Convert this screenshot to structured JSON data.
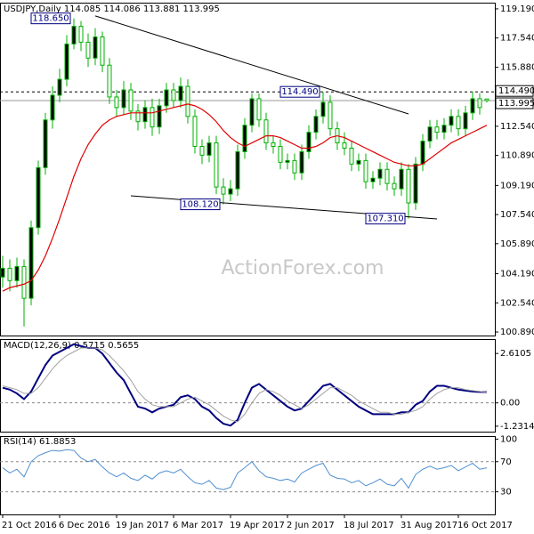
{
  "chart_data": [
    {
      "type": "candlestick",
      "title": "USDJPY,Daily  114.085 114.086 113.881 113.995",
      "watermark": "ActionForex.com",
      "categories": [
        "21 Oct 2016",
        null,
        null,
        null,
        null,
        null,
        null,
        null,
        "6 Dec 2016",
        null,
        null,
        null,
        null,
        null,
        null,
        null,
        "19 Jan 2017",
        null,
        null,
        null,
        null,
        null,
        null,
        null,
        "6 Mar 2017",
        null,
        null,
        null,
        null,
        null,
        null,
        null,
        "19 Apr 2017",
        null,
        null,
        null,
        null,
        null,
        null,
        null,
        "2 Jun 2017",
        null,
        null,
        null,
        null,
        null,
        null,
        null,
        "18 Jul 2017",
        null,
        null,
        null,
        null,
        null,
        null,
        null,
        "31 Aug 2017",
        null,
        null,
        null,
        null,
        null,
        null,
        null,
        "16 Oct 2017",
        null,
        null,
        null,
        null
      ],
      "open": [
        104.0,
        104.5,
        103.8,
        104.6,
        102.8,
        106.8,
        110.2,
        112.9,
        114.3,
        115.2,
        117.2,
        118.2,
        117.3,
        116.4,
        117.6,
        116.0,
        114.2,
        113.6,
        114.6,
        113.4,
        112.8,
        113.6,
        112.5,
        113.7,
        114.6,
        114.0,
        114.8,
        113.1,
        111.4,
        110.9,
        111.6,
        109.1,
        108.7,
        109.0,
        111.1,
        112.6,
        114.1,
        112.9,
        111.6,
        111.4,
        110.5,
        110.6,
        109.9,
        111.1,
        112.2,
        113.1,
        113.9,
        112.4,
        111.6,
        111.3,
        110.4,
        110.6,
        109.4,
        109.6,
        110.1,
        109.3,
        109.0,
        110.1,
        108.2,
        110.4,
        111.7,
        112.5,
        112.2,
        112.6,
        113.1,
        112.4,
        113.3,
        114.1,
        114.085
      ],
      "high": [
        105.2,
        105.0,
        105.1,
        105.0,
        107.2,
        110.6,
        113.3,
        114.8,
        115.8,
        117.7,
        118.65,
        118.5,
        117.8,
        118.1,
        117.9,
        116.4,
        114.6,
        115.1,
        115.0,
        113.8,
        114.0,
        114.1,
        114.1,
        115.0,
        115.0,
        115.3,
        115.2,
        113.5,
        111.8,
        112.0,
        112.0,
        109.6,
        109.5,
        111.5,
        113.0,
        114.4,
        114.4,
        113.3,
        112.0,
        111.8,
        111.0,
        111.0,
        111.5,
        112.6,
        113.5,
        114.49,
        114.3,
        112.8,
        112.2,
        111.7,
        111.0,
        111.0,
        110.0,
        110.5,
        110.5,
        109.7,
        110.5,
        110.4,
        110.8,
        112.1,
        112.9,
        112.9,
        113.0,
        113.5,
        113.5,
        113.7,
        114.5,
        114.4,
        114.086
      ],
      "low": [
        103.4,
        103.2,
        103.4,
        101.2,
        102.4,
        106.4,
        109.8,
        112.4,
        113.9,
        114.8,
        116.9,
        116.8,
        115.9,
        116.0,
        115.6,
        113.8,
        113.1,
        113.2,
        112.9,
        112.3,
        112.4,
        112.0,
        112.1,
        113.3,
        113.6,
        113.6,
        112.7,
        111.0,
        110.4,
        110.5,
        108.7,
        108.12,
        108.3,
        108.6,
        110.7,
        112.2,
        112.5,
        111.2,
        111.0,
        110.1,
        110.1,
        109.5,
        109.5,
        110.7,
        111.8,
        112.7,
        112.0,
        111.2,
        110.9,
        110.0,
        110.0,
        109.0,
        109.0,
        109.2,
        108.9,
        108.6,
        108.6,
        107.31,
        107.8,
        110.0,
        111.3,
        111.8,
        111.8,
        112.2,
        112.0,
        112.0,
        112.9,
        113.2,
        113.881
      ],
      "close": [
        104.5,
        103.8,
        104.6,
        102.8,
        106.8,
        110.2,
        112.9,
        114.3,
        115.2,
        117.2,
        118.2,
        117.3,
        116.4,
        117.6,
        116.0,
        114.2,
        113.6,
        114.6,
        113.4,
        112.8,
        113.6,
        112.5,
        113.7,
        114.6,
        114.0,
        114.8,
        113.1,
        111.4,
        110.9,
        111.6,
        109.1,
        108.7,
        109.0,
        111.1,
        112.6,
        114.1,
        112.9,
        111.6,
        111.4,
        110.5,
        110.6,
        109.9,
        111.1,
        112.2,
        113.1,
        113.9,
        112.4,
        111.6,
        111.3,
        110.4,
        110.6,
        109.4,
        109.6,
        110.1,
        109.3,
        109.0,
        110.1,
        108.2,
        110.4,
        111.7,
        112.5,
        112.2,
        112.6,
        113.1,
        112.4,
        113.3,
        114.1,
        113.6,
        113.995
      ],
      "color": "#00b000",
      "ma": {
        "color": "#e00000",
        "values": [
          103.2,
          103.4,
          103.5,
          103.6,
          103.8,
          104.4,
          105.2,
          106.2,
          107.3,
          108.5,
          109.7,
          110.7,
          111.5,
          112.1,
          112.6,
          112.9,
          113.1,
          113.2,
          113.3,
          113.3,
          113.3,
          113.3,
          113.4,
          113.5,
          113.6,
          113.7,
          113.8,
          113.7,
          113.5,
          113.2,
          112.8,
          112.3,
          111.9,
          111.6,
          111.4,
          111.6,
          111.8,
          112.0,
          112.0,
          111.9,
          111.7,
          111.5,
          111.3,
          111.3,
          111.4,
          111.6,
          111.9,
          112.0,
          111.9,
          111.7,
          111.5,
          111.3,
          111.1,
          110.9,
          110.7,
          110.5,
          110.4,
          110.3,
          110.3,
          110.4,
          110.7,
          111.0,
          111.3,
          111.6,
          111.8,
          112.0,
          112.2,
          112.4,
          112.6
        ]
      },
      "ylim": [
        100.69,
        119.54
      ],
      "yticks": [
        {
          "value": 119.19,
          "label": "119.190"
        },
        {
          "value": 117.54,
          "label": "117.540"
        },
        {
          "value": 115.88,
          "label": "115.880"
        },
        {
          "value": 112.54,
          "label": "112.540"
        },
        {
          "value": 110.89,
          "label": "110.890"
        },
        {
          "value": 109.19,
          "label": "109.190"
        },
        {
          "value": 107.54,
          "label": "107.540"
        },
        {
          "value": 105.89,
          "label": "105.890"
        },
        {
          "value": 104.19,
          "label": "104.190"
        },
        {
          "value": 102.54,
          "label": "102.540"
        },
        {
          "value": 100.89,
          "label": "100.890"
        }
      ],
      "levels": [
        {
          "value": 114.49,
          "label": "114.490",
          "style": "dashed"
        },
        {
          "value": 113.995,
          "label": "113.995",
          "style": "solid"
        }
      ],
      "annotations": [
        {
          "value": 118.65,
          "label": "118.650",
          "x": 10
        },
        {
          "value": 114.49,
          "label": "114.490",
          "x": 45
        },
        {
          "value": 108.12,
          "label": "108.120",
          "x": 31
        },
        {
          "value": 107.31,
          "label": "107.310",
          "x": 57
        }
      ],
      "trendlines": [
        {
          "x": [
            13,
            57
          ],
          "y": [
            118.79,
            113.24
          ]
        },
        {
          "x": [
            18,
            61
          ],
          "y": [
            108.6,
            107.29
          ]
        }
      ]
    },
    {
      "type": "line",
      "title": "MACD(12,26,9) 0.5715 0.5655",
      "series": [
        {
          "color": "#000080",
          "width": 2,
          "values": [
            0.8,
            0.7,
            0.5,
            0.2,
            0.6,
            1.3,
            2.0,
            2.5,
            2.7,
            2.9,
            3.1,
            3.0,
            2.9,
            2.9,
            2.6,
            2.1,
            1.6,
            1.2,
            0.5,
            -0.2,
            -0.3,
            -0.5,
            -0.3,
            -0.2,
            -0.1,
            0.3,
            0.4,
            0.2,
            -0.2,
            -0.4,
            -0.8,
            -1.1,
            -1.2,
            -0.9,
            0.0,
            0.8,
            1.0,
            0.7,
            0.4,
            0.1,
            -0.2,
            -0.4,
            -0.3,
            0.1,
            0.5,
            0.9,
            1.0,
            0.7,
            0.4,
            0.1,
            -0.2,
            -0.4,
            -0.6,
            -0.6,
            -0.6,
            -0.6,
            -0.5,
            -0.5,
            -0.1,
            0.1,
            0.6,
            0.9,
            0.9,
            0.8,
            0.7,
            0.65,
            0.6,
            0.58,
            0.5715
          ]
        },
        {
          "color": "#a0a0a0",
          "width": 1,
          "values": [
            0.9,
            0.8,
            0.7,
            0.5,
            0.5,
            0.8,
            1.3,
            1.8,
            2.2,
            2.5,
            2.7,
            2.9,
            2.9,
            2.9,
            2.8,
            2.5,
            2.1,
            1.7,
            1.2,
            0.6,
            0.2,
            -0.1,
            -0.2,
            -0.2,
            -0.2,
            0.0,
            0.2,
            0.3,
            0.1,
            -0.1,
            -0.4,
            -0.7,
            -0.9,
            -1.0,
            -0.6,
            0.0,
            0.5,
            0.7,
            0.6,
            0.4,
            0.1,
            -0.1,
            -0.3,
            -0.1,
            0.2,
            0.5,
            0.8,
            0.8,
            0.6,
            0.4,
            0.1,
            -0.1,
            -0.3,
            -0.5,
            -0.5,
            -0.6,
            -0.6,
            -0.5,
            -0.4,
            -0.2,
            0.2,
            0.5,
            0.7,
            0.8,
            0.8,
            0.7,
            0.65,
            0.6,
            0.5655
          ]
        }
      ],
      "ylim": [
        -1.52,
        3.37
      ],
      "yticks": [
        2.6105,
        {
          "value": 0,
          "label": "0.00"
        },
        -1.2314
      ],
      "ref_lines": [
        0
      ]
    },
    {
      "type": "line",
      "title": "RSI(14) 61.8853",
      "series": [
        {
          "color": "#4f8fd0",
          "width": 1,
          "values": [
            62,
            55,
            60,
            50,
            70,
            78,
            82,
            85,
            84,
            86,
            85,
            75,
            70,
            73,
            63,
            55,
            50,
            55,
            48,
            45,
            52,
            47,
            55,
            58,
            55,
            60,
            50,
            42,
            40,
            45,
            35,
            33,
            36,
            55,
            62,
            70,
            58,
            50,
            48,
            45,
            47,
            43,
            55,
            60,
            65,
            68,
            52,
            48,
            47,
            42,
            45,
            38,
            42,
            47,
            40,
            38,
            48,
            35,
            53,
            60,
            64,
            60,
            62,
            65,
            58,
            63,
            68,
            60,
            61.8853
          ]
        }
      ],
      "ylim": [
        0,
        104
      ],
      "yticks": [
        100,
        70,
        30
      ],
      "ref_lines": [
        70,
        30
      ]
    }
  ]
}
